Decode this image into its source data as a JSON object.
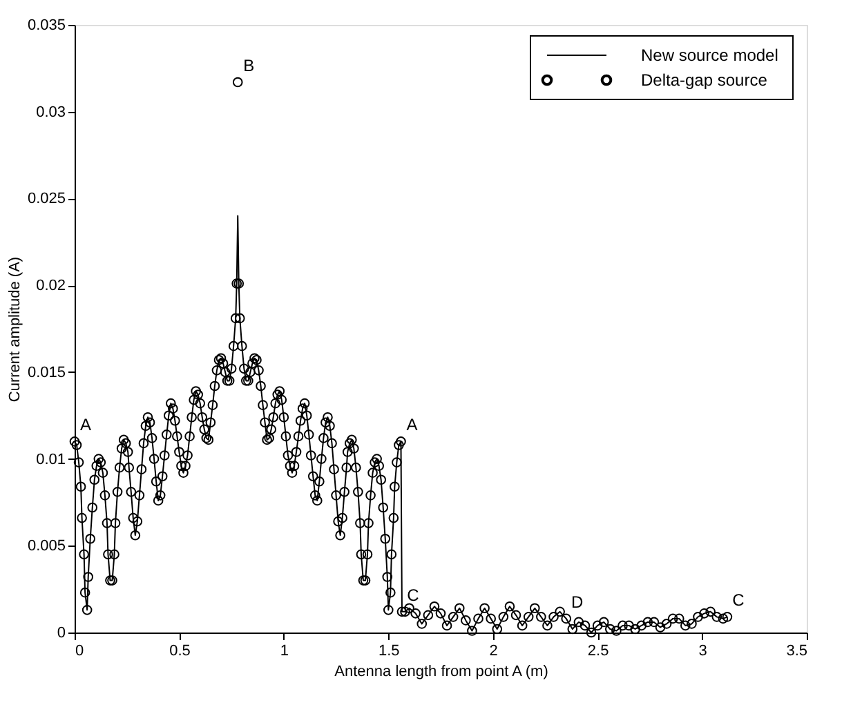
{
  "chart_data": {
    "type": "line",
    "xlabel": "Antenna length from point A (m)",
    "ylabel": "Current amplitude (A)",
    "xlim": [
      0,
      3.5
    ],
    "xticks": [
      0,
      0.5,
      1,
      1.5,
      2,
      2.5,
      3,
      3.5
    ],
    "ylim": [
      0,
      0.035
    ],
    "yticks": [
      0,
      0.005,
      0.01,
      0.015,
      0.02,
      0.025,
      0.03,
      0.035
    ],
    "grid": false,
    "legend": "top right",
    "annotations": [
      {
        "text": "A",
        "x": 0,
        "y": 0.011
      },
      {
        "text": "B",
        "x": 0.78,
        "y": 0.0317
      },
      {
        "text": "A",
        "x": 1.56,
        "y": 0.011
      },
      {
        "text": "C",
        "x": 1.565,
        "y": 0.0012
      },
      {
        "text": "D",
        "x": 2.35,
        "y": 0.0008
      },
      {
        "text": "C",
        "x": 3.12,
        "y": 0.0009
      }
    ],
    "series": [
      {
        "name": "New source model",
        "color": "#000000",
        "marker": "none",
        "line_style": "solid",
        "x": [
          0,
          0.01,
          0.02,
          0.03,
          0.035,
          0.045,
          0.05,
          0.06,
          0.065,
          0.075,
          0.085,
          0.095,
          0.105,
          0.115,
          0.125,
          0.135,
          0.145,
          0.155,
          0.16,
          0.17,
          0.18,
          0.19,
          0.195,
          0.205,
          0.215,
          0.225,
          0.235,
          0.245,
          0.255,
          0.26,
          0.27,
          0.28,
          0.29,
          0.3,
          0.31,
          0.32,
          0.33,
          0.34,
          0.35,
          0.36,
          0.37,
          0.38,
          0.39,
          0.4,
          0.41,
          0.42,
          0.43,
          0.44,
          0.45,
          0.46,
          0.47,
          0.48,
          0.49,
          0.5,
          0.51,
          0.52,
          0.53,
          0.54,
          0.55,
          0.56,
          0.57,
          0.58,
          0.59,
          0.6,
          0.61,
          0.62,
          0.63,
          0.64,
          0.65,
          0.66,
          0.67,
          0.68,
          0.69,
          0.7,
          0.71,
          0.72,
          0.73,
          0.74,
          0.75,
          0.76,
          0.77,
          0.775,
          0.78,
          0.785,
          0.79,
          0.8,
          0.81,
          0.82,
          0.83,
          0.84,
          0.85,
          0.86,
          0.87,
          0.88,
          0.89,
          0.9,
          0.91,
          0.92,
          0.93,
          0.94,
          0.95,
          0.96,
          0.97,
          0.98,
          0.99,
          1.0,
          1.01,
          1.02,
          1.03,
          1.04,
          1.05,
          1.06,
          1.07,
          1.08,
          1.09,
          1.1,
          1.11,
          1.12,
          1.13,
          1.14,
          1.15,
          1.16,
          1.17,
          1.18,
          1.19,
          1.2,
          1.21,
          1.22,
          1.23,
          1.24,
          1.25,
          1.26,
          1.27,
          1.28,
          1.29,
          1.3,
          1.305,
          1.315,
          1.325,
          1.335,
          1.345,
          1.355,
          1.365,
          1.37,
          1.38,
          1.39,
          1.4,
          1.405,
          1.415,
          1.425,
          1.435,
          1.445,
          1.455,
          1.465,
          1.475,
          1.485,
          1.495,
          1.5,
          1.51,
          1.515,
          1.525,
          1.53,
          1.54,
          1.55,
          1.56,
          1.565,
          1.58,
          1.6,
          1.63,
          1.66,
          1.69,
          1.72,
          1.75,
          1.78,
          1.81,
          1.84,
          1.87,
          1.9,
          1.93,
          1.96,
          1.99,
          2.02,
          2.05,
          2.08,
          2.11,
          2.14,
          2.17,
          2.2,
          2.23,
          2.26,
          2.29,
          2.32,
          2.35,
          2.38,
          2.41,
          2.44,
          2.47,
          2.5,
          2.53,
          2.56,
          2.59,
          2.62,
          2.65,
          2.68,
          2.71,
          2.74,
          2.77,
          2.8,
          2.83,
          2.86,
          2.89,
          2.92,
          2.95,
          2.98,
          3.01,
          3.04,
          3.07,
          3.1,
          3.12
        ],
        "values": [
          0.011,
          0.0108,
          0.0098,
          0.0084,
          0.0066,
          0.0045,
          0.0023,
          0.0013,
          0.0032,
          0.0054,
          0.0072,
          0.0088,
          0.0096,
          0.01,
          0.0098,
          0.0092,
          0.0079,
          0.0063,
          0.0045,
          0.003,
          0.003,
          0.0045,
          0.0063,
          0.0081,
          0.0095,
          0.0106,
          0.0111,
          0.0109,
          0.0104,
          0.0095,
          0.0081,
          0.0066,
          0.0056,
          0.0064,
          0.0079,
          0.0094,
          0.0109,
          0.0119,
          0.0124,
          0.0121,
          0.0112,
          0.01,
          0.0087,
          0.0076,
          0.0079,
          0.009,
          0.0102,
          0.0114,
          0.0125,
          0.0132,
          0.0129,
          0.0122,
          0.0113,
          0.0104,
          0.0096,
          0.0092,
          0.0096,
          0.0102,
          0.0113,
          0.0124,
          0.0134,
          0.0139,
          0.0137,
          0.0132,
          0.0124,
          0.0117,
          0.0112,
          0.0111,
          0.0121,
          0.0131,
          0.0142,
          0.0151,
          0.0157,
          0.0158,
          0.0155,
          0.015,
          0.0145,
          0.0145,
          0.0152,
          0.0165,
          0.0181,
          0.0201,
          0.024,
          0.0201,
          0.0181,
          0.0165,
          0.0152,
          0.0145,
          0.0145,
          0.015,
          0.0155,
          0.0158,
          0.0157,
          0.0151,
          0.0142,
          0.0131,
          0.0121,
          0.0111,
          0.0112,
          0.0117,
          0.0124,
          0.0132,
          0.0137,
          0.0139,
          0.0134,
          0.0124,
          0.0113,
          0.0102,
          0.0096,
          0.0092,
          0.0096,
          0.0104,
          0.0113,
          0.0122,
          0.0129,
          0.0132,
          0.0125,
          0.0114,
          0.0102,
          0.009,
          0.0079,
          0.0076,
          0.0087,
          0.01,
          0.0112,
          0.0121,
          0.0124,
          0.0119,
          0.0109,
          0.0094,
          0.0079,
          0.0064,
          0.0056,
          0.0066,
          0.0081,
          0.0095,
          0.0104,
          0.0109,
          0.0111,
          0.0106,
          0.0095,
          0.0081,
          0.0063,
          0.0045,
          0.003,
          0.003,
          0.0045,
          0.0063,
          0.0079,
          0.0092,
          0.0098,
          0.01,
          0.0096,
          0.0088,
          0.0072,
          0.0054,
          0.0032,
          0.0013,
          0.0023,
          0.0045,
          0.0066,
          0.0084,
          0.0098,
          0.0108,
          0.011,
          0.0012,
          0.0012,
          0.0014,
          0.0011,
          0.0005,
          0.001,
          0.0015,
          0.0011,
          0.0004,
          0.0009,
          0.0014,
          0.0007,
          0.0001,
          0.0008,
          0.0014,
          0.0008,
          0.0002,
          0.0009,
          0.0015,
          0.001,
          0.0004,
          0.0009,
          0.0014,
          0.0009,
          0.0004,
          0.0009,
          0.0012,
          0.0008,
          0.0002,
          0.0006,
          0.0004,
          0.0,
          0.0004,
          0.0006,
          0.0002,
          0.0001,
          0.0004,
          0.0004,
          0.0002,
          0.0004,
          0.0006,
          0.0006,
          0.0003,
          0.0005,
          0.0008,
          0.0008,
          0.0004,
          0.0005,
          0.0009,
          0.0011,
          0.0012,
          0.0009,
          0.0008,
          0.0009
        ]
      },
      {
        "name": "Delta-gap source",
        "type": "scatter",
        "color": "#000000",
        "marker": "circle",
        "x": [
          0,
          0.01,
          0.02,
          0.03,
          0.035,
          0.045,
          0.05,
          0.06,
          0.065,
          0.075,
          0.085,
          0.095,
          0.105,
          0.115,
          0.125,
          0.135,
          0.145,
          0.155,
          0.16,
          0.17,
          0.18,
          0.19,
          0.195,
          0.205,
          0.215,
          0.225,
          0.235,
          0.245,
          0.255,
          0.26,
          0.27,
          0.28,
          0.29,
          0.3,
          0.31,
          0.32,
          0.33,
          0.34,
          0.35,
          0.36,
          0.37,
          0.38,
          0.39,
          0.4,
          0.41,
          0.42,
          0.43,
          0.44,
          0.45,
          0.46,
          0.47,
          0.48,
          0.49,
          0.5,
          0.51,
          0.52,
          0.53,
          0.54,
          0.55,
          0.56,
          0.57,
          0.58,
          0.59,
          0.6,
          0.61,
          0.62,
          0.63,
          0.64,
          0.65,
          0.66,
          0.67,
          0.68,
          0.69,
          0.7,
          0.71,
          0.72,
          0.73,
          0.74,
          0.75,
          0.76,
          0.77,
          0.775,
          0.78,
          0.785,
          0.79,
          0.8,
          0.81,
          0.82,
          0.83,
          0.84,
          0.85,
          0.86,
          0.87,
          0.88,
          0.89,
          0.9,
          0.91,
          0.92,
          0.93,
          0.94,
          0.95,
          0.96,
          0.97,
          0.98,
          0.99,
          1.0,
          1.01,
          1.02,
          1.03,
          1.04,
          1.05,
          1.06,
          1.07,
          1.08,
          1.09,
          1.1,
          1.11,
          1.12,
          1.13,
          1.14,
          1.15,
          1.16,
          1.17,
          1.18,
          1.19,
          1.2,
          1.21,
          1.22,
          1.23,
          1.24,
          1.25,
          1.26,
          1.27,
          1.28,
          1.29,
          1.3,
          1.305,
          1.315,
          1.325,
          1.335,
          1.345,
          1.355,
          1.365,
          1.37,
          1.38,
          1.39,
          1.4,
          1.405,
          1.415,
          1.425,
          1.435,
          1.445,
          1.455,
          1.465,
          1.475,
          1.485,
          1.495,
          1.5,
          1.51,
          1.515,
          1.525,
          1.53,
          1.54,
          1.55,
          1.56,
          1.565,
          1.58,
          1.6,
          1.63,
          1.66,
          1.69,
          1.72,
          1.75,
          1.78,
          1.81,
          1.84,
          1.87,
          1.9,
          1.93,
          1.96,
          1.99,
          2.02,
          2.05,
          2.08,
          2.11,
          2.14,
          2.17,
          2.2,
          2.23,
          2.26,
          2.29,
          2.32,
          2.35,
          2.38,
          2.41,
          2.44,
          2.47,
          2.5,
          2.53,
          2.56,
          2.59,
          2.62,
          2.65,
          2.68,
          2.71,
          2.74,
          2.77,
          2.8,
          2.83,
          2.86,
          2.89,
          2.92,
          2.95,
          2.98,
          3.01,
          3.04,
          3.07,
          3.1,
          3.12
        ],
        "values": [
          0.011,
          0.0108,
          0.0098,
          0.0084,
          0.0066,
          0.0045,
          0.0023,
          0.0013,
          0.0032,
          0.0054,
          0.0072,
          0.0088,
          0.0096,
          0.01,
          0.0098,
          0.0092,
          0.0079,
          0.0063,
          0.0045,
          0.003,
          0.003,
          0.0045,
          0.0063,
          0.0081,
          0.0095,
          0.0106,
          0.0111,
          0.0109,
          0.0104,
          0.0095,
          0.0081,
          0.0066,
          0.0056,
          0.0064,
          0.0079,
          0.0094,
          0.0109,
          0.0119,
          0.0124,
          0.0121,
          0.0112,
          0.01,
          0.0087,
          0.0076,
          0.0079,
          0.009,
          0.0102,
          0.0114,
          0.0125,
          0.0132,
          0.0129,
          0.0122,
          0.0113,
          0.0104,
          0.0096,
          0.0092,
          0.0096,
          0.0102,
          0.0113,
          0.0124,
          0.0134,
          0.0139,
          0.0137,
          0.0132,
          0.0124,
          0.0117,
          0.0112,
          0.0111,
          0.0121,
          0.0131,
          0.0142,
          0.0151,
          0.0157,
          0.0158,
          0.0155,
          0.015,
          0.0145,
          0.0145,
          0.0152,
          0.0165,
          0.0181,
          0.0201,
          0.0317,
          0.0201,
          0.0181,
          0.0165,
          0.0152,
          0.0145,
          0.0145,
          0.015,
          0.0155,
          0.0158,
          0.0157,
          0.0151,
          0.0142,
          0.0131,
          0.0121,
          0.0111,
          0.0112,
          0.0117,
          0.0124,
          0.0132,
          0.0137,
          0.0139,
          0.0134,
          0.0124,
          0.0113,
          0.0102,
          0.0096,
          0.0092,
          0.0096,
          0.0104,
          0.0113,
          0.0122,
          0.0129,
          0.0132,
          0.0125,
          0.0114,
          0.0102,
          0.009,
          0.0079,
          0.0076,
          0.0087,
          0.01,
          0.0112,
          0.0121,
          0.0124,
          0.0119,
          0.0109,
          0.0094,
          0.0079,
          0.0064,
          0.0056,
          0.0066,
          0.0081,
          0.0095,
          0.0104,
          0.0109,
          0.0111,
          0.0106,
          0.0095,
          0.0081,
          0.0063,
          0.0045,
          0.003,
          0.003,
          0.0045,
          0.0063,
          0.0079,
          0.0092,
          0.0098,
          0.01,
          0.0096,
          0.0088,
          0.0072,
          0.0054,
          0.0032,
          0.0013,
          0.0023,
          0.0045,
          0.0066,
          0.0084,
          0.0098,
          0.0108,
          0.011,
          0.0012,
          0.0012,
          0.0014,
          0.0011,
          0.0005,
          0.001,
          0.0015,
          0.0011,
          0.0004,
          0.0009,
          0.0014,
          0.0007,
          0.0001,
          0.0008,
          0.0014,
          0.0008,
          0.0002,
          0.0009,
          0.0015,
          0.001,
          0.0004,
          0.0009,
          0.0014,
          0.0009,
          0.0004,
          0.0009,
          0.0012,
          0.0008,
          0.0002,
          0.0006,
          0.0004,
          0.0,
          0.0004,
          0.0006,
          0.0002,
          0.0001,
          0.0004,
          0.0004,
          0.0002,
          0.0004,
          0.0006,
          0.0006,
          0.0003,
          0.0005,
          0.0008,
          0.0008,
          0.0004,
          0.0005,
          0.0009,
          0.0011,
          0.0012,
          0.0009,
          0.0008,
          0.0009
        ]
      }
    ]
  }
}
